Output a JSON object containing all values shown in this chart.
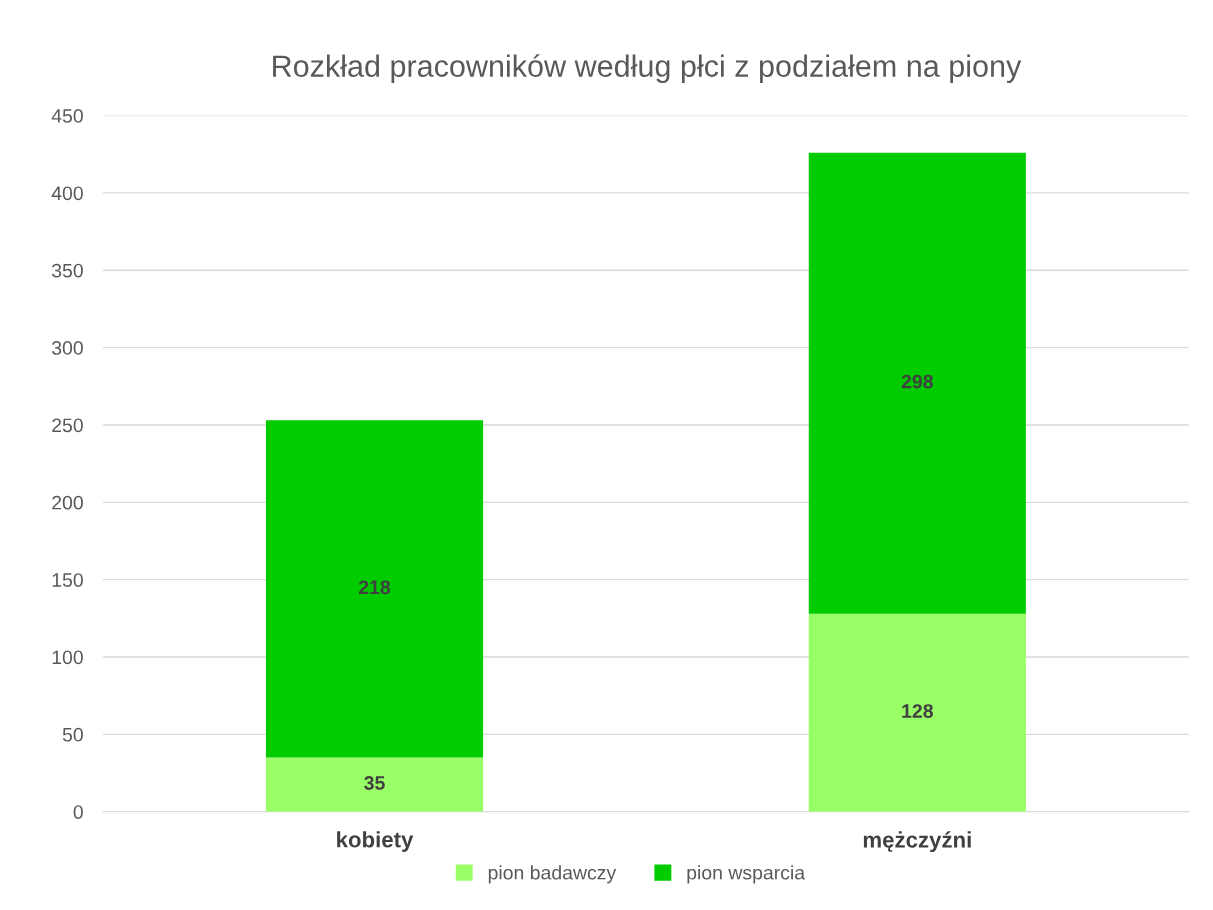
{
  "chart_data": {
    "type": "bar",
    "title": "Rozkład pracowników według płci z podziałem na piony",
    "categories": [
      "kobiety",
      "mężczyźni"
    ],
    "series": [
      {
        "name": "pion badawczy",
        "color": "#99ff66",
        "values": [
          35,
          128
        ]
      },
      {
        "name": "pion wsparcia",
        "color": "#00cc00",
        "values": [
          218,
          298
        ]
      }
    ],
    "stacked": true,
    "data_labels": true,
    "ylim": [
      0,
      450
    ],
    "yticks": [
      0,
      50,
      100,
      150,
      200,
      250,
      300,
      350,
      400,
      450
    ],
    "grid": "y",
    "legend": "bottom"
  }
}
